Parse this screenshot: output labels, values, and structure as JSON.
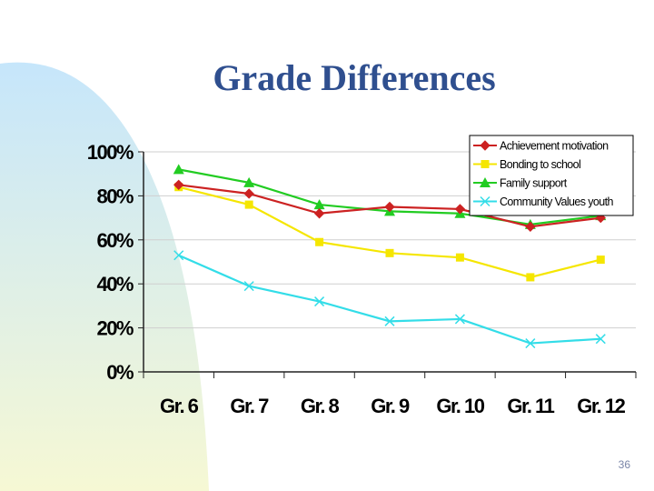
{
  "slide": {
    "title": "Grade Differences",
    "page_number": "36"
  },
  "colors": {
    "title": "#2f4f8f",
    "background_curve_top": "#c6e6fb",
    "background_curve_bottom": "#f6f8d4"
  },
  "chart_data": {
    "type": "line",
    "title": "",
    "xlabel": "",
    "ylabel": "",
    "categories": [
      "Gr. 6",
      "Gr. 7",
      "Gr. 8",
      "Gr. 9",
      "Gr. 10",
      "Gr. 11",
      "Gr. 12"
    ],
    "ylim": [
      0,
      100
    ],
    "yticks": [
      0,
      20,
      40,
      60,
      80,
      100
    ],
    "ytick_labels": [
      "0%",
      "20%",
      "40%",
      "60%",
      "80%",
      "100%"
    ],
    "grid": true,
    "legend_position": "top-right",
    "series": [
      {
        "name": "Achievement motivation",
        "color": "#cc2222",
        "marker": "diamond",
        "values": [
          85,
          81,
          72,
          75,
          74,
          66,
          70
        ]
      },
      {
        "name": "Bonding to school",
        "color": "#f5e600",
        "marker": "square",
        "values": [
          84,
          76,
          59,
          54,
          52,
          43,
          51
        ]
      },
      {
        "name": "Family support",
        "color": "#22cc22",
        "marker": "triangle",
        "values": [
          92,
          86,
          76,
          73,
          72,
          67,
          71
        ]
      },
      {
        "name": "Community Values youth",
        "color": "#33dde8",
        "marker": "x",
        "values": [
          53,
          39,
          32,
          23,
          24,
          13,
          15
        ]
      }
    ]
  }
}
